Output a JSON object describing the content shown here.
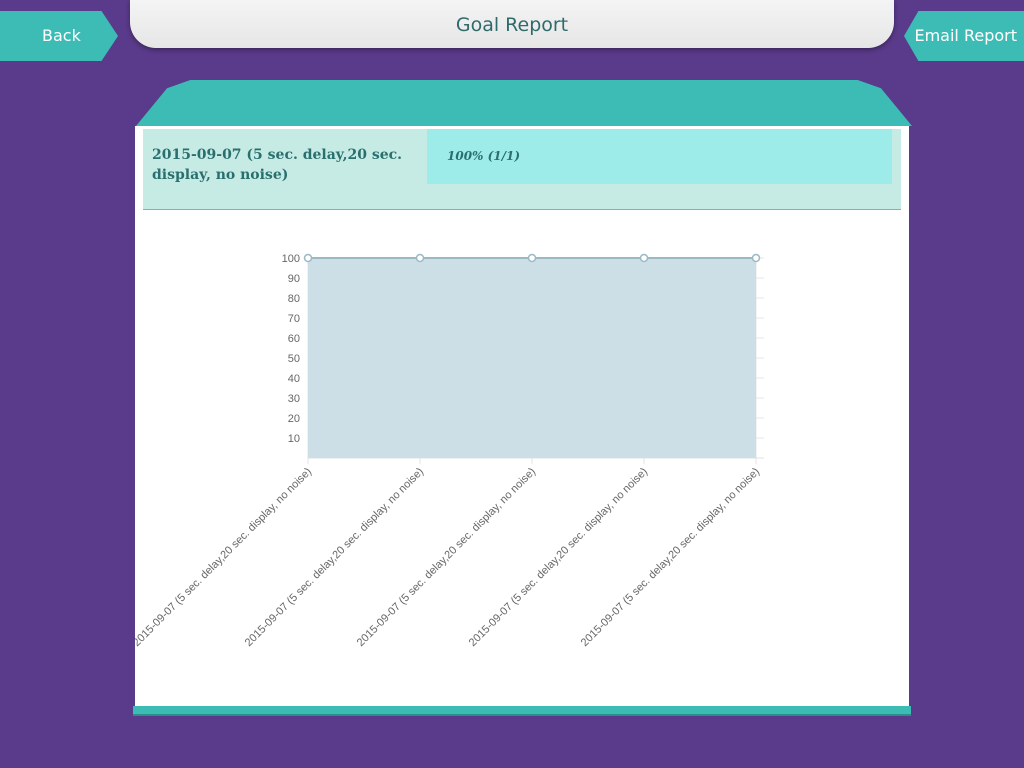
{
  "header": {
    "title": "Goal Report",
    "back_label": "Back",
    "email_label": "Email Report"
  },
  "session": {
    "label": "2015-09-07 (5 sec. delay,20 sec. display, no noise)",
    "result": "100% (1/1)"
  },
  "colors": {
    "background": "#5a3a8a",
    "accent": "#3dbcb6",
    "row_bg": "#c6ebe4",
    "result_bg": "#9eece9",
    "chart_fill": "#c9dde6"
  },
  "chart_data": {
    "type": "area",
    "categories": [
      "2015-09-07 (5 sec. delay,20 sec. display, no noise)",
      "2015-09-07 (5 sec. delay,20 sec. display, no noise)",
      "2015-09-07 (5 sec. delay,20 sec. display, no noise)",
      "2015-09-07 (5 sec. delay,20 sec. display, no noise)",
      "2015-09-07 (5 sec. delay,20 sec. display, no noise)"
    ],
    "values": [
      100,
      100,
      100,
      100,
      100
    ],
    "yticks": [
      10,
      20,
      30,
      40,
      50,
      60,
      70,
      80,
      90,
      100
    ],
    "ylim": [
      0,
      100
    ],
    "grid": true,
    "title": "",
    "xlabel": "",
    "ylabel": ""
  }
}
